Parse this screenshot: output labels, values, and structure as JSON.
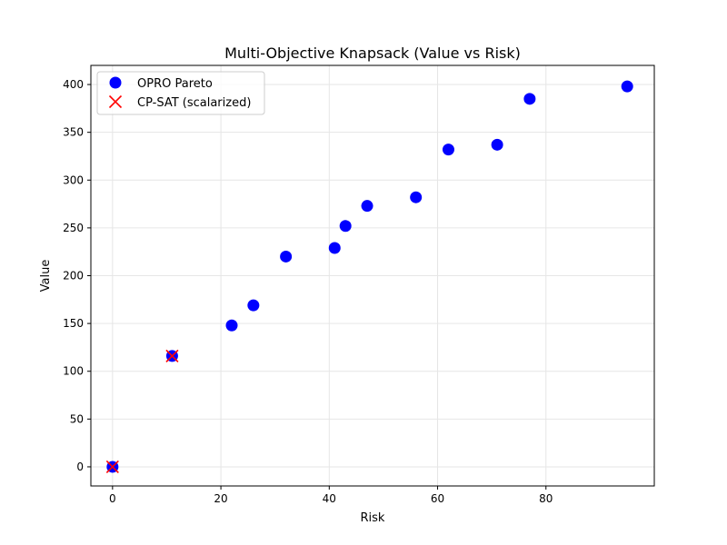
{
  "chart_data": {
    "type": "scatter",
    "title": "Multi-Objective Knapsack (Value vs Risk)",
    "xlabel": "Risk",
    "ylabel": "Value",
    "xlim": [
      -4,
      100
    ],
    "ylim": [
      -20,
      420
    ],
    "xticks": [
      0,
      20,
      40,
      60,
      80
    ],
    "yticks": [
      0,
      50,
      100,
      150,
      200,
      250,
      300,
      350,
      400
    ],
    "grid": true,
    "legend_position": "upper-left",
    "series": [
      {
        "name": "OPRO Pareto",
        "marker": "circle",
        "color": "#0000ff",
        "points": [
          {
            "x": 0,
            "y": 0
          },
          {
            "x": 11,
            "y": 116
          },
          {
            "x": 22,
            "y": 148
          },
          {
            "x": 26,
            "y": 169
          },
          {
            "x": 32,
            "y": 220
          },
          {
            "x": 41,
            "y": 229
          },
          {
            "x": 43,
            "y": 252
          },
          {
            "x": 47,
            "y": 273
          },
          {
            "x": 56,
            "y": 282
          },
          {
            "x": 62,
            "y": 332
          },
          {
            "x": 71,
            "y": 337
          },
          {
            "x": 77,
            "y": 385
          },
          {
            "x": 95,
            "y": 398
          }
        ]
      },
      {
        "name": "CP-SAT (scalarized)",
        "marker": "x",
        "color": "#ff0000",
        "points": [
          {
            "x": 0,
            "y": 0
          },
          {
            "x": 11,
            "y": 116
          }
        ]
      }
    ]
  }
}
